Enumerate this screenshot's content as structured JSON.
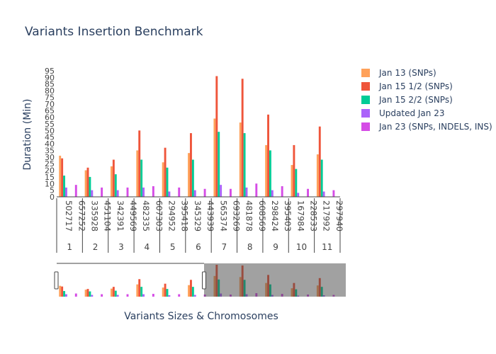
{
  "chart_data": {
    "type": "bar",
    "title": "Variants Insertion Benchmark",
    "xlabel": "Variants Sizes & Chromosomes",
    "ylabel": "Duration (Min)",
    "ylim": [
      0,
      95
    ],
    "yticks": [
      0,
      5,
      10,
      15,
      20,
      25,
      30,
      35,
      40,
      45,
      50,
      55,
      60,
      65,
      70,
      75,
      80,
      85,
      90,
      95
    ],
    "legend_position": "right",
    "groups": [
      {
        "label": "1",
        "categories": [
          "502717",
          "657252"
        ]
      },
      {
        "label": "2",
        "categories": [
          "335928",
          "451104"
        ]
      },
      {
        "label": "3",
        "categories": [
          "342391",
          "449569"
        ]
      },
      {
        "label": "4",
        "categories": [
          "482335",
          "607303"
        ]
      },
      {
        "label": "5",
        "categories": [
          "294952",
          "395418"
        ]
      },
      {
        "label": "6",
        "categories": [
          "345329",
          "443939"
        ]
      },
      {
        "label": "7",
        "categories": [
          "565374",
          "693269"
        ]
      },
      {
        "label": "8",
        "categories": [
          "481878",
          "608569"
        ]
      },
      {
        "label": "9",
        "categories": [
          "298424",
          "395403"
        ]
      },
      {
        "label": "10",
        "categories": [
          "167984",
          "228533"
        ]
      },
      {
        "label": "11",
        "categories": [
          "217992",
          "297940"
        ]
      }
    ],
    "series": [
      {
        "name": "Jan 13 (SNPs)",
        "color": "#FFA15A",
        "values": [
          31,
          null,
          20,
          null,
          23,
          null,
          35,
          null,
          26,
          null,
          33,
          null,
          59,
          null,
          56,
          null,
          39,
          null,
          24,
          null,
          32,
          null
        ]
      },
      {
        "name": "Jan 15 1/2 (SNPs)",
        "color": "#EF553B",
        "values": [
          29,
          null,
          22,
          null,
          28,
          null,
          50,
          null,
          37,
          null,
          48,
          null,
          91,
          null,
          89,
          null,
          62,
          null,
          39,
          null,
          53,
          null
        ]
      },
      {
        "name": "Jan 15 2/2 (SNPs)",
        "color": "#00CC96",
        "values": [
          16,
          null,
          15,
          null,
          17,
          null,
          28,
          null,
          22,
          null,
          28,
          null,
          49,
          null,
          48,
          null,
          35,
          null,
          21,
          null,
          28,
          null
        ]
      },
      {
        "name": "Updated Jan 23",
        "color": "#AB63FA",
        "values": [
          7,
          null,
          5,
          null,
          5,
          null,
          7,
          null,
          4,
          null,
          5,
          null,
          9,
          null,
          7,
          null,
          5,
          null,
          3,
          null,
          4,
          null
        ]
      },
      {
        "name": "Jan 23 (SNPs, INDELS, INS)",
        "color": "#D54CE6",
        "values": [
          null,
          9,
          null,
          7,
          null,
          7,
          null,
          8,
          null,
          7,
          null,
          6,
          null,
          6,
          null,
          10,
          null,
          8,
          null,
          6,
          null,
          5
        ]
      }
    ]
  }
}
